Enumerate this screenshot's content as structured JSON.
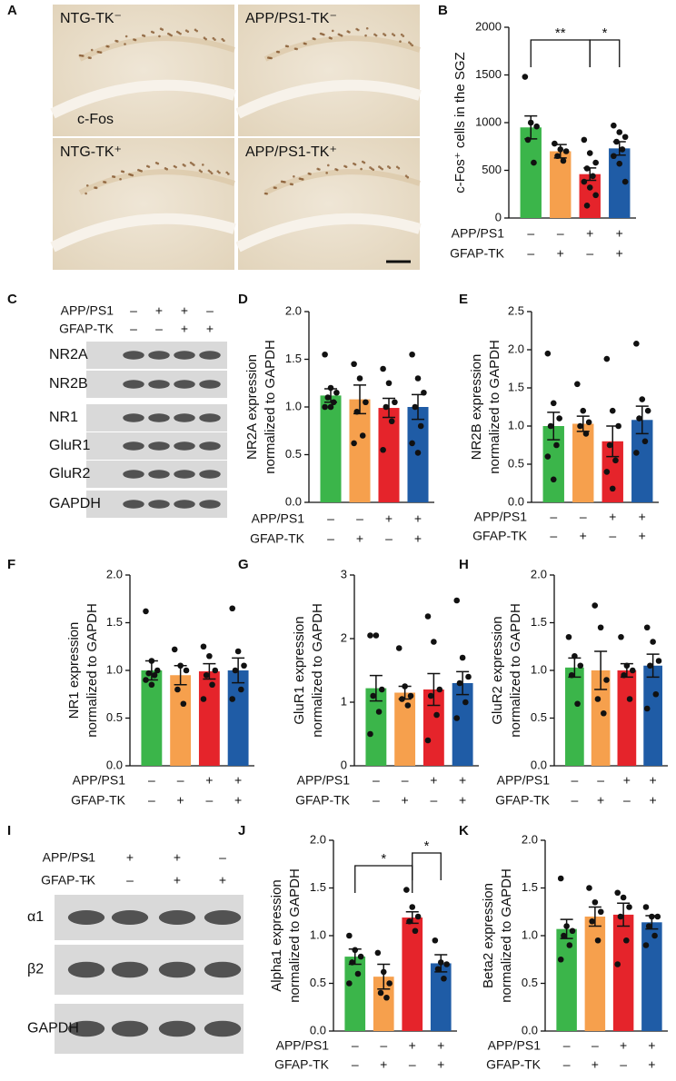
{
  "panel_labels": [
    "A",
    "B",
    "C",
    "D",
    "E",
    "F",
    "G",
    "H",
    "I",
    "J",
    "K"
  ],
  "image_panel": {
    "labels": [
      "NTG-TK⁻",
      "APP/PS1-TK⁻",
      "NTG-TK⁺",
      "APP/PS1-TK⁺"
    ],
    "stain": "c-Fos"
  },
  "blot_c": {
    "conditions": [
      {
        "label": "APP/PS1",
        "signs": [
          "–",
          "+",
          "+",
          "–"
        ]
      },
      {
        "label": "GFAP-TK",
        "signs": [
          "–",
          "–",
          "+",
          "+"
        ]
      }
    ],
    "bands": [
      "NR2A",
      "NR2B",
      "NR1",
      "GluR1",
      "GluR2",
      "GAPDH"
    ]
  },
  "blot_i": {
    "conditions": [
      {
        "label": "APP/PS1",
        "signs": [
          "–",
          "+",
          "+",
          "–"
        ]
      },
      {
        "label": "GFAP-TK",
        "signs": [
          "–",
          "–",
          "+",
          "+"
        ]
      }
    ],
    "bands": [
      "α1",
      "β2",
      "GAPDH"
    ]
  },
  "chart_data": [
    {
      "type": "bar",
      "ylabel": [
        "c-Fos⁺ cells in the SGZ"
      ],
      "ylim": [
        0,
        2000
      ],
      "yticks": [
        0,
        500,
        1000,
        1500,
        2000
      ],
      "values": [
        950,
        700,
        460,
        730
      ],
      "errors": [
        120,
        70,
        65,
        70
      ],
      "colors": [
        "#3bb54a",
        "#f6a04d",
        "#e5242b",
        "#1f5ca6"
      ],
      "points": [
        [
          1480,
          1000,
          960,
          820,
          580
        ],
        [
          780,
          720,
          700,
          650,
          600
        ],
        [
          820,
          680,
          580,
          520,
          440,
          380,
          320,
          240,
          130
        ],
        [
          970,
          900,
          850,
          800,
          720,
          650,
          570,
          380
        ]
      ],
      "conditions": [
        {
          "label": "APP/PS1",
          "signs": [
            "–",
            "–",
            "+",
            "+"
          ]
        },
        {
          "label": "GFAP-TK",
          "signs": [
            "–",
            "+",
            "–",
            "+"
          ]
        }
      ],
      "significance": [
        {
          "bars": [
            0,
            2
          ],
          "label": "**"
        },
        {
          "bars": [
            2,
            3
          ],
          "label": "*"
        }
      ]
    },
    {
      "type": "bar",
      "ylabel": [
        "NR2A expression",
        "normalized to GAPDH"
      ],
      "ylim": [
        0,
        2
      ],
      "yticks": [
        {
          "value": 0,
          "label": "0.0"
        },
        0.5,
        {
          "value": 1,
          "label": "1.0"
        },
        1.5,
        {
          "value": 2,
          "label": "2.0"
        }
      ],
      "values": [
        1.12,
        1.08,
        0.99,
        1.0
      ],
      "errors": [
        0.07,
        0.15,
        0.1,
        0.13
      ],
      "colors": [
        "#3bb54a",
        "#f6a04d",
        "#e5242b",
        "#1f5ca6"
      ],
      "points": [
        [
          1.55,
          1.2,
          1.15,
          1.1,
          1.05,
          1.0,
          1.0
        ],
        [
          1.45,
          1.3,
          1.05,
          0.95,
          0.7,
          0.62
        ],
        [
          1.4,
          1.25,
          1.05,
          1.0,
          0.85,
          0.55
        ],
        [
          1.55,
          1.3,
          1.15,
          1.0,
          0.8,
          0.62,
          0.52
        ]
      ],
      "conditions": [
        {
          "label": "APP/PS1",
          "signs": [
            "–",
            "–",
            "+",
            "+"
          ]
        },
        {
          "label": "GFAP-TK",
          "signs": [
            "–",
            "+",
            "–",
            "+"
          ]
        }
      ],
      "significance": []
    },
    {
      "type": "bar",
      "ylabel": [
        "NR2B expression",
        "normalized to GAPDH"
      ],
      "ylim": [
        0,
        2.5
      ],
      "yticks": [
        {
          "value": 0,
          "label": "0.0"
        },
        0.5,
        {
          "value": 1,
          "label": "1.0"
        },
        1.5,
        {
          "value": 2,
          "label": "2.0"
        },
        2.5
      ],
      "values": [
        1.0,
        1.03,
        0.8,
        1.08
      ],
      "errors": [
        0.18,
        0.1,
        0.2,
        0.18
      ],
      "colors": [
        "#3bb54a",
        "#f6a04d",
        "#e5242b",
        "#1f5ca6"
      ],
      "points": [
        [
          1.95,
          1.3,
          1.1,
          1.0,
          0.75,
          0.6,
          0.3
        ],
        [
          1.55,
          1.2,
          1.05,
          1.0,
          0.9
        ],
        [
          1.88,
          1.2,
          1.0,
          0.75,
          0.55,
          0.4,
          0.18
        ],
        [
          2.08,
          1.35,
          1.2,
          1.1,
          0.8,
          0.65
        ]
      ],
      "conditions": [
        {
          "label": "APP/PS1",
          "signs": [
            "–",
            "–",
            "+",
            "+"
          ]
        },
        {
          "label": "GFAP-TK",
          "signs": [
            "–",
            "+",
            "–",
            "+"
          ]
        }
      ],
      "significance": []
    },
    {
      "type": "bar",
      "ylabel": [
        "NR1 expression",
        "normalized to GAPDH"
      ],
      "ylim": [
        0,
        2
      ],
      "yticks": [
        {
          "value": 0,
          "label": "0.0"
        },
        0.5,
        {
          "value": 1,
          "label": "1.0"
        },
        1.5,
        {
          "value": 2,
          "label": "2.0"
        }
      ],
      "values": [
        1.0,
        0.95,
        0.99,
        1.0
      ],
      "errors": [
        0.1,
        0.1,
        0.08,
        0.13
      ],
      "colors": [
        "#3bb54a",
        "#f6a04d",
        "#e5242b",
        "#1f5ca6"
      ],
      "points": [
        [
          1.62,
          1.1,
          1.0,
          0.97,
          0.95,
          0.9,
          0.85
        ],
        [
          1.22,
          1.05,
          1.0,
          0.8,
          0.65
        ],
        [
          1.25,
          1.15,
          1.0,
          0.95,
          0.85,
          0.7
        ],
        [
          1.65,
          1.2,
          1.05,
          1.0,
          0.8,
          0.7
        ]
      ],
      "conditions": [
        {
          "label": "APP/PS1",
          "signs": [
            "–",
            "–",
            "+",
            "+"
          ]
        },
        {
          "label": "GFAP-TK",
          "signs": [
            "–",
            "+",
            "–",
            "+"
          ]
        }
      ],
      "significance": []
    },
    {
      "type": "bar",
      "ylabel": [
        "GluR1 expression",
        "normalized to GAPDH"
      ],
      "ylim": [
        0,
        3
      ],
      "yticks": [
        0,
        1,
        2,
        3
      ],
      "values": [
        1.22,
        1.15,
        1.2,
        1.3
      ],
      "errors": [
        0.2,
        0.1,
        0.25,
        0.18
      ],
      "colors": [
        "#3bb54a",
        "#f6a04d",
        "#e5242b",
        "#1f5ca6"
      ],
      "points": [
        [
          2.05,
          2.05,
          1.2,
          1.1,
          0.85,
          0.5
        ],
        [
          1.85,
          1.25,
          1.1,
          1.05,
          0.95
        ],
        [
          2.35,
          1.95,
          1.2,
          1.1,
          0.8,
          0.4
        ],
        [
          2.6,
          1.7,
          1.4,
          1.3,
          1.0,
          0.75
        ]
      ],
      "conditions": [
        {
          "label": "APP/PS1",
          "signs": [
            "–",
            "–",
            "+",
            "+"
          ]
        },
        {
          "label": "GFAP-TK",
          "signs": [
            "–",
            "+",
            "–",
            "+"
          ]
        }
      ],
      "significance": []
    },
    {
      "type": "bar",
      "ylabel": [
        "GluR2 expression",
        "normalized to GAPDH"
      ],
      "ylim": [
        0,
        2
      ],
      "yticks": [
        {
          "value": 0,
          "label": "0.0"
        },
        0.5,
        {
          "value": 1,
          "label": "1.0"
        },
        1.5,
        {
          "value": 2,
          "label": "2.0"
        }
      ],
      "values": [
        1.03,
        1.0,
        1.0,
        1.05
      ],
      "errors": [
        0.1,
        0.2,
        0.07,
        0.12
      ],
      "colors": [
        "#3bb54a",
        "#f6a04d",
        "#e5242b",
        "#1f5ca6"
      ],
      "points": [
        [
          1.35,
          1.15,
          1.05,
          0.95,
          0.65
        ],
        [
          1.68,
          1.45,
          0.9,
          0.7,
          0.55
        ],
        [
          1.35,
          1.05,
          1.0,
          0.95,
          0.7
        ],
        [
          1.45,
          1.3,
          1.1,
          1.05,
          0.75,
          0.6
        ]
      ],
      "conditions": [
        {
          "label": "APP/PS1",
          "signs": [
            "–",
            "–",
            "+",
            "+"
          ]
        },
        {
          "label": "GFAP-TK",
          "signs": [
            "–",
            "+",
            "–",
            "+"
          ]
        }
      ],
      "significance": []
    },
    {
      "type": "bar",
      "ylabel": [
        "Alpha1 expression",
        "normalized to GAPDH"
      ],
      "ylim": [
        0,
        2
      ],
      "yticks": [
        {
          "value": 0,
          "label": "0.0"
        },
        0.5,
        {
          "value": 1,
          "label": "1.0"
        },
        1.5,
        {
          "value": 2,
          "label": "2.0"
        }
      ],
      "values": [
        0.78,
        0.57,
        1.19,
        0.71
      ],
      "errors": [
        0.08,
        0.13,
        0.06,
        0.09
      ],
      "colors": [
        "#3bb54a",
        "#f6a04d",
        "#e5242b",
        "#1f5ca6"
      ],
      "points": [
        [
          1.0,
          0.85,
          0.78,
          0.72,
          0.6,
          0.5
        ],
        [
          0.82,
          0.62,
          0.5,
          0.4,
          0.35
        ],
        [
          1.48,
          1.3,
          1.2,
          1.15,
          1.05
        ],
        [
          0.95,
          0.72,
          0.7,
          0.65,
          0.55
        ]
      ],
      "conditions": [
        {
          "label": "APP/PS1",
          "signs": [
            "–",
            "–",
            "+",
            "+"
          ]
        },
        {
          "label": "GFAP-TK",
          "signs": [
            "–",
            "+",
            "–",
            "+"
          ]
        }
      ],
      "significance": [
        {
          "bars": [
            0,
            2
          ],
          "label": "*"
        },
        {
          "bars": [
            2,
            3
          ],
          "label": "*"
        }
      ]
    },
    {
      "type": "bar",
      "ylabel": [
        "Beta2 expression",
        "normalized to GAPDH"
      ],
      "ylim": [
        0,
        2
      ],
      "yticks": [
        {
          "value": 0,
          "label": "0.0"
        },
        0.5,
        {
          "value": 1,
          "label": "1.0"
        },
        1.5,
        {
          "value": 2,
          "label": "2.0"
        }
      ],
      "values": [
        1.07,
        1.2,
        1.22,
        1.14
      ],
      "errors": [
        0.1,
        0.1,
        0.12,
        0.07
      ],
      "colors": [
        "#3bb54a",
        "#f6a04d",
        "#e5242b",
        "#1f5ca6"
      ],
      "points": [
        [
          1.6,
          1.1,
          1.05,
          1.0,
          0.9,
          0.75
        ],
        [
          1.5,
          1.35,
          1.25,
          1.15,
          0.95
        ],
        [
          1.45,
          1.4,
          1.3,
          1.2,
          0.95,
          0.7
        ],
        [
          1.3,
          1.2,
          1.2,
          1.1,
          1.0,
          0.9
        ]
      ],
      "conditions": [
        {
          "label": "APP/PS1",
          "signs": [
            "–",
            "–",
            "+",
            "+"
          ]
        },
        {
          "label": "GFAP-TK",
          "signs": [
            "–",
            "+",
            "–",
            "+"
          ]
        }
      ],
      "significance": []
    }
  ]
}
